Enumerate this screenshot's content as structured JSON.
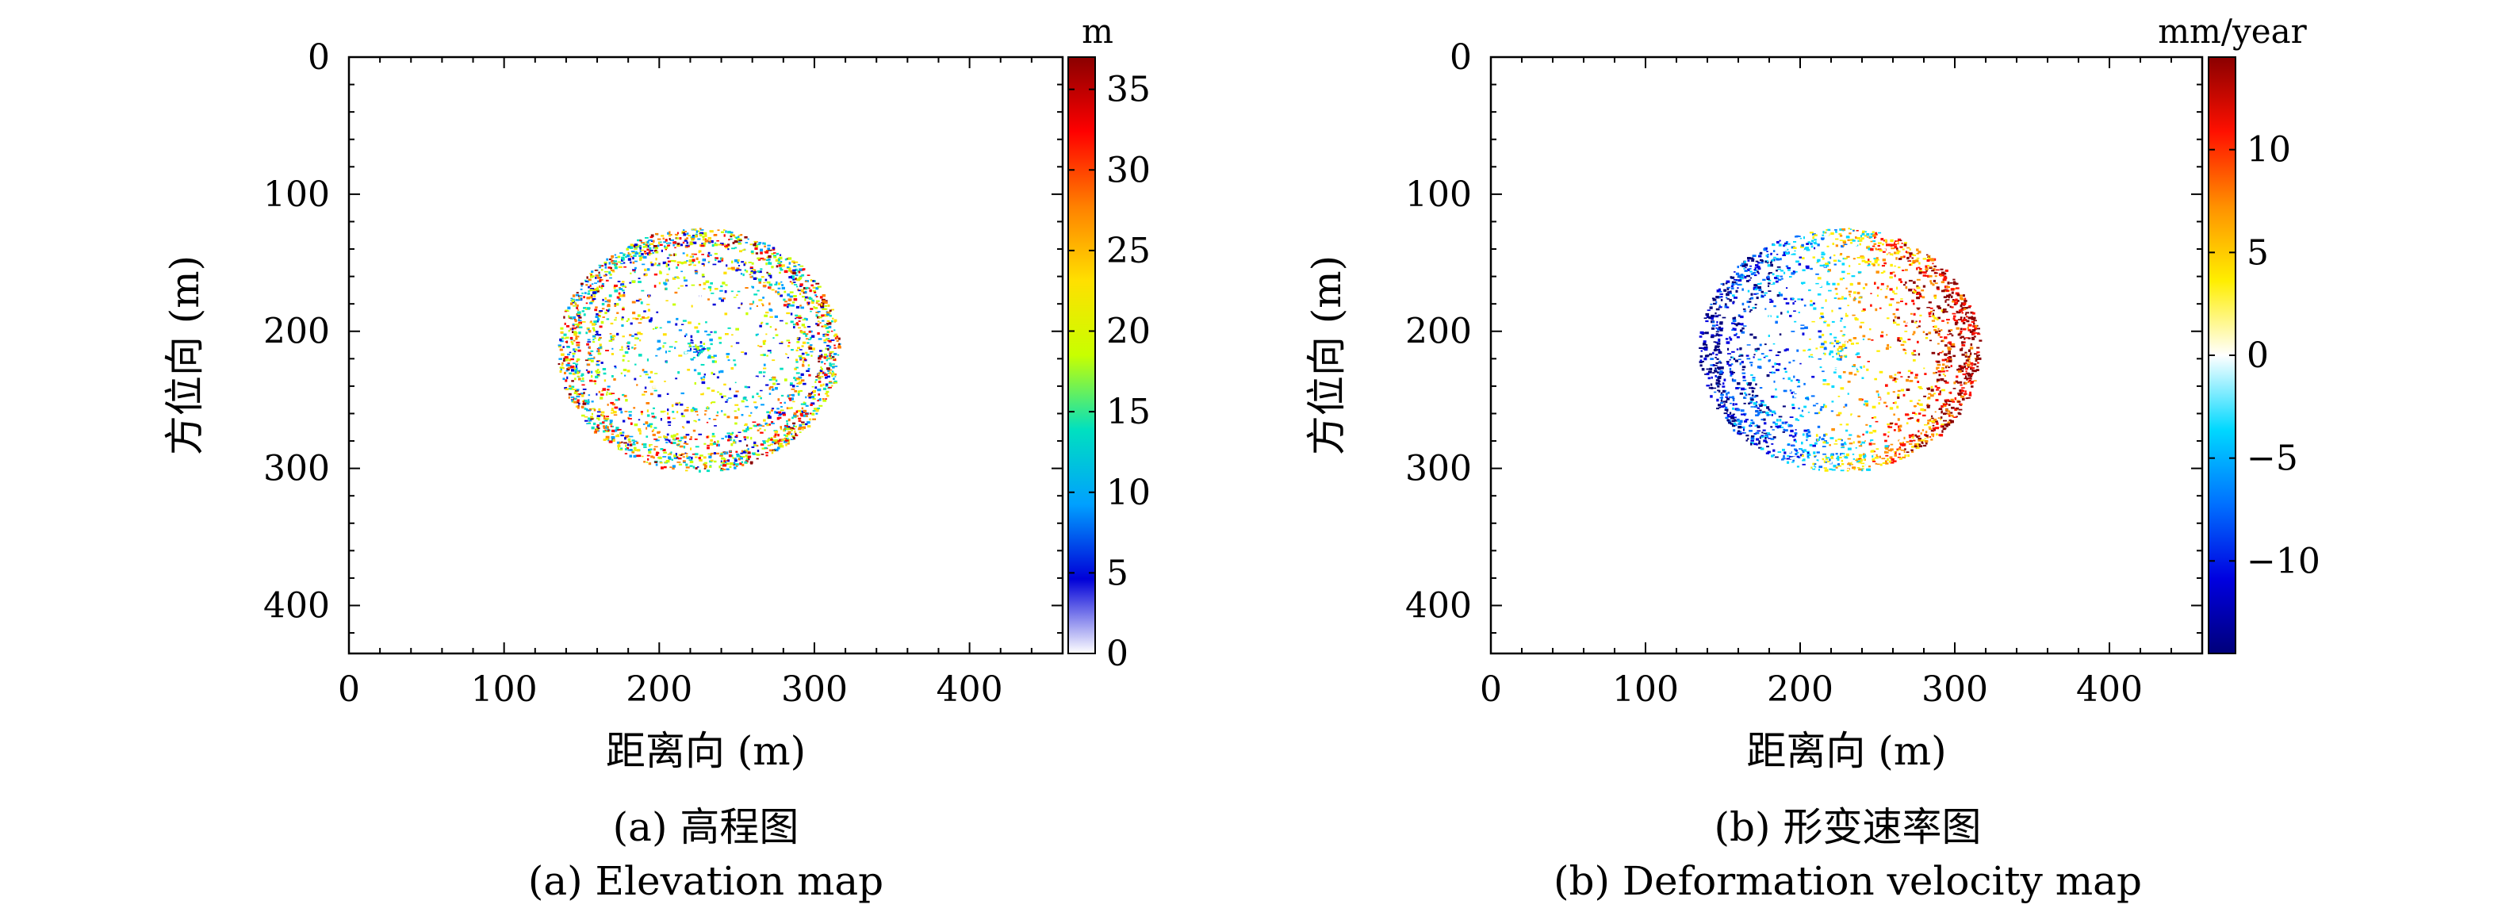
{
  "chart_data": [
    {
      "type": "heatmap",
      "caption_cn": "(a) 高程图",
      "caption_en": "(a) Elevation map",
      "xlabel": "距离向 (m)",
      "ylabel": "方位向 (m)",
      "xlim": [
        0,
        460
      ],
      "ylim": [
        435,
        0
      ],
      "xticks": [
        0,
        100,
        200,
        300,
        400
      ],
      "xtick_labels": [
        "0",
        "100",
        "200",
        "300",
        "400"
      ],
      "yticks": [
        0,
        100,
        200,
        300,
        400
      ],
      "ytick_labels": [
        "0",
        "100",
        "200",
        "300",
        "400"
      ],
      "grid": false,
      "colorbar": {
        "title": "m",
        "range": [
          0,
          37
        ],
        "ticks": [
          0,
          5,
          10,
          15,
          20,
          25,
          30,
          35
        ],
        "tick_labels": [
          "0",
          "5",
          "10",
          "15",
          "20",
          "25",
          "30",
          "35"
        ],
        "colormap": [
          "#ffffff",
          "#0000d8",
          "#00a0ff",
          "#00e0c0",
          "#c8ff00",
          "#ffe000",
          "#ff8000",
          "#ff0000",
          "#8a0000"
        ]
      },
      "data_extent": {
        "center": [
          225,
          213
        ],
        "outer_radius": [
          90,
          88
        ]
      }
    },
    {
      "type": "heatmap",
      "caption_cn": "(b) 形变速率图",
      "caption_en": "(b) Deformation velocity map",
      "xlabel": "距离向 (m)",
      "ylabel": "方位向 (m)",
      "xlim": [
        0,
        460
      ],
      "ylim": [
        435,
        0
      ],
      "xticks": [
        0,
        100,
        200,
        300,
        400
      ],
      "xtick_labels": [
        "0",
        "100",
        "200",
        "300",
        "400"
      ],
      "yticks": [
        0,
        100,
        200,
        300,
        400
      ],
      "ytick_labels": [
        "0",
        "100",
        "200",
        "300",
        "400"
      ],
      "grid": false,
      "colorbar": {
        "title": "mm/year",
        "range": [
          -14.5,
          14.5
        ],
        "ticks": [
          -10,
          -5,
          0,
          5,
          10
        ],
        "tick_labels": [
          "−10",
          "−5",
          "0",
          "5",
          "10"
        ],
        "colormap": [
          "#00007a",
          "#0000e0",
          "#0070ff",
          "#00d8ff",
          "#ffffff",
          "#ffee00",
          "#ff9000",
          "#ff1000",
          "#8a0000"
        ]
      },
      "data_extent": {
        "center": [
          225,
          213
        ],
        "outer_radius": [
          90,
          88
        ]
      }
    }
  ]
}
